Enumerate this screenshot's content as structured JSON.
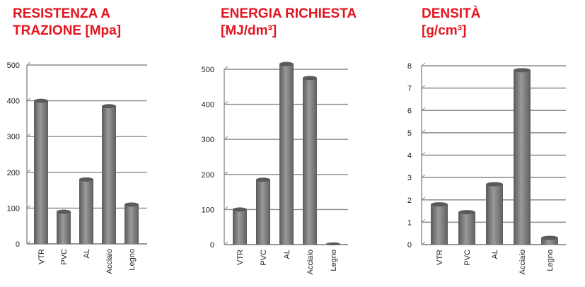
{
  "chart_data": [
    {
      "type": "bar",
      "title_lines": [
        "RESISTENZA A",
        "TRAZIONE [Mpa]"
      ],
      "categories": [
        "VTR",
        "PVC",
        "AL",
        "Acciaio",
        "Legno"
      ],
      "values": [
        400,
        90,
        180,
        385,
        110
      ],
      "yticks": [
        0,
        100,
        200,
        300,
        400,
        500
      ],
      "ylim": [
        0,
        500
      ],
      "grid": true,
      "bar_color": "#7a7a7a"
    },
    {
      "type": "bar",
      "title_lines": [
        "ENERGIA RICHIESTA",
        "[MJ/dm³]"
      ],
      "categories": [
        "VTR",
        "PVC",
        "AL",
        "Acciaio",
        "Legno"
      ],
      "values": [
        100,
        185,
        515,
        475,
        0
      ],
      "yticks": [
        0,
        100,
        200,
        300,
        400,
        500
      ],
      "ylim": [
        0,
        500
      ],
      "grid": true,
      "bar_color": "#7a7a7a"
    },
    {
      "type": "bar",
      "title_lines": [
        "DENSITÀ",
        "[g/cm³]"
      ],
      "categories": [
        "VTR",
        "PVC",
        "AL",
        "Acciaio",
        "Legno"
      ],
      "values": [
        1.8,
        1.45,
        2.7,
        7.8,
        0.3
      ],
      "yticks": [
        0,
        1,
        2,
        3,
        4,
        5,
        6,
        7,
        8
      ],
      "ylim": [
        0,
        8
      ],
      "grid": true,
      "bar_color": "#7a7a7a"
    }
  ]
}
